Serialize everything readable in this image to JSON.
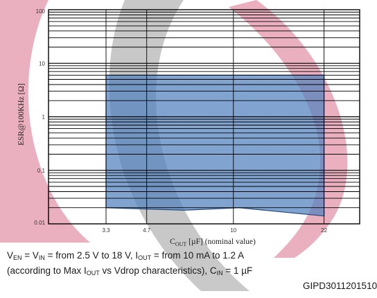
{
  "chart_data": {
    "type": "area",
    "x_scale": "log",
    "y_scale": "log",
    "xlim": [
      2.0,
      30.0
    ],
    "ylim": [
      0.01,
      100
    ],
    "x_ticks": [
      "3.3",
      "4.7",
      "10",
      "22"
    ],
    "x_tick_values": [
      3.3,
      4.7,
      10,
      22
    ],
    "y_ticks": [
      "100",
      "10",
      "1",
      "0.1",
      "0.01"
    ],
    "y_tick_values": [
      100,
      10,
      1,
      0.1,
      0.01
    ],
    "xlabel": {
      "pre": "C",
      "sub": "OUT",
      "post": " [µF] (nominal value)"
    },
    "ylabel": "ESR@100KHz [Ω]",
    "grid": true,
    "series": [
      {
        "fill": "#4f81bd",
        "points": [
          [
            3.3,
            6.0
          ],
          [
            22,
            6.0
          ],
          [
            22,
            0.014
          ],
          [
            10.5,
            0.02
          ],
          [
            6.5,
            0.018
          ],
          [
            3.3,
            0.02
          ]
        ]
      }
    ]
  },
  "conditions": {
    "line1": {
      "v": "V",
      "en": "EN",
      "eq1": " = V",
      "in": "IN",
      "range": " = from 2.5 V to 18 V,  I",
      "out": "OUT",
      "current": " = from 10 mA to 1.2 A"
    },
    "line2": {
      "pre": "(according to Max I",
      "out": "OUT",
      "mid": " vs Vdrop characteristics), C",
      "in": "IN",
      "post": " = 1 µF"
    }
  },
  "doc_id": "GIPD3011201510",
  "colors": {
    "watermark_pink": "#e8a2b4",
    "watermark_gray": "#bfbfbf",
    "region_fill": "#4f81bd",
    "region_edge": "#2f4f7f",
    "grid": "#000000"
  }
}
